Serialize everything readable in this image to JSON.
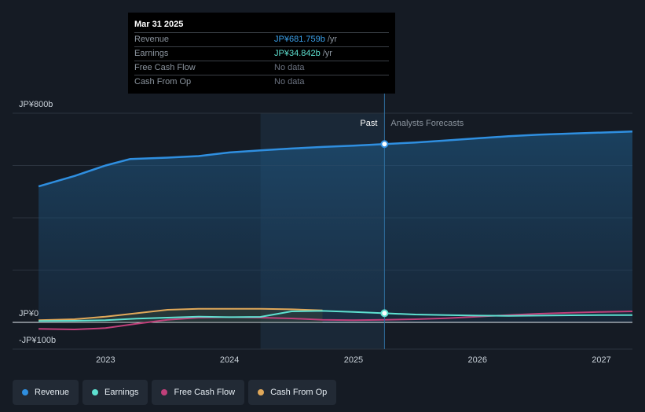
{
  "tooltip": {
    "date": "Mar 31 2025",
    "rows": [
      {
        "label": "Revenue",
        "value": "JP¥681.759b",
        "unit": "/yr",
        "color": "#3a9fe8"
      },
      {
        "label": "Earnings",
        "value": "JP¥34.842b",
        "unit": "/yr",
        "color": "#5ee0d0"
      },
      {
        "label": "Free Cash Flow",
        "value": "No data",
        "unit": "",
        "color": "#6b7280"
      },
      {
        "label": "Cash From Op",
        "value": "No data",
        "unit": "",
        "color": "#6b7280"
      }
    ]
  },
  "legend": [
    {
      "label": "Revenue",
      "color": "#2f8fe0"
    },
    {
      "label": "Earnings",
      "color": "#5ee0d0"
    },
    {
      "label": "Free Cash Flow",
      "color": "#c0407a"
    },
    {
      "label": "Cash From Op",
      "color": "#e0a85a"
    }
  ],
  "chart_data": {
    "type": "line",
    "title": "",
    "y_unit": "JP¥ billions",
    "ylim": [
      -100,
      800
    ],
    "y_tick_labels": [
      {
        "value": 800,
        "label": "JP¥800b"
      },
      {
        "value": 0,
        "label": "JP¥0"
      },
      {
        "value": -100,
        "label": "-JP¥100b"
      }
    ],
    "xlim": [
      2022.25,
      2027.25
    ],
    "x_ticks": [
      2023,
      2024,
      2025,
      2026,
      2027
    ],
    "past_forecast_divider": 2025.25,
    "highlight_start": 2024.25,
    "past_label": "Past",
    "forecast_label": "Analysts Forecasts",
    "marker_x": 2025.25,
    "series": [
      {
        "name": "Revenue",
        "color": "#2f8fe0",
        "fill": true,
        "x": [
          2022.46,
          2022.75,
          2023.0,
          2023.2,
          2023.5,
          2023.75,
          2024.0,
          2024.25,
          2024.5,
          2024.75,
          2025.0,
          2025.25,
          2025.5,
          2025.75,
          2026.0,
          2026.25,
          2026.5,
          2026.75,
          2027.0,
          2027.25
        ],
        "values": [
          520,
          560,
          600,
          625,
          630,
          636,
          650,
          658,
          665,
          671,
          676,
          682,
          688,
          696,
          704,
          712,
          718,
          722,
          726,
          730
        ]
      },
      {
        "name": "Earnings",
        "color": "#5ee0d0",
        "fill": false,
        "x": [
          2022.46,
          2022.75,
          2023.0,
          2023.25,
          2023.5,
          2023.75,
          2024.0,
          2024.25,
          2024.5,
          2024.75,
          2025.0,
          2025.25,
          2025.5,
          2025.75,
          2026.0,
          2026.25,
          2026.5,
          2026.75,
          2027.0,
          2027.25
        ],
        "values": [
          5,
          6,
          8,
          14,
          18,
          22,
          20,
          21,
          42,
          44,
          40,
          35,
          30,
          28,
          26,
          25,
          26,
          27,
          28,
          28
        ]
      },
      {
        "name": "Free Cash Flow",
        "color": "#c0407a",
        "fill": false,
        "x": [
          2022.46,
          2022.75,
          2023.0,
          2023.25,
          2023.5,
          2023.75,
          2024.0,
          2024.25,
          2024.5,
          2024.75,
          2025.0,
          2025.25,
          2025.5,
          2025.75,
          2026.0,
          2026.25,
          2026.5,
          2026.75,
          2027.0,
          2027.25
        ],
        "values": [
          -25,
          -27,
          -22,
          -5,
          10,
          18,
          20,
          18,
          15,
          10,
          8,
          10,
          12,
          16,
          22,
          28,
          33,
          37,
          40,
          42
        ]
      },
      {
        "name": "Cash From Op",
        "color": "#e0a85a",
        "fill": false,
        "x": [
          2022.46,
          2022.75,
          2023.0,
          2023.25,
          2023.5,
          2023.75,
          2024.0,
          2024.25,
          2024.5,
          2024.75
        ],
        "values": [
          8,
          12,
          22,
          35,
          48,
          52,
          52,
          52,
          50,
          46
        ]
      }
    ]
  }
}
